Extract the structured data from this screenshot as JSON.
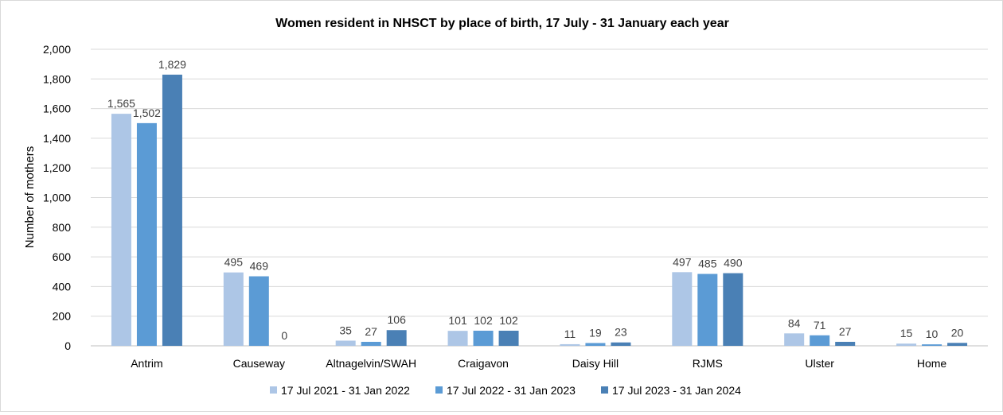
{
  "chart_data": {
    "type": "bar",
    "title": "Women resident in NHSCT by place of birth, 17 July - 31 January each year",
    "xlabel": "",
    "ylabel": "Number of mothers",
    "ylim": [
      0,
      2000
    ],
    "yticks": [
      "0",
      "200",
      "400",
      "600",
      "800",
      "1,000",
      "1,200",
      "1,400",
      "1,600",
      "1,800",
      "2,000"
    ],
    "grid": true,
    "legend_position": "bottom",
    "categories": [
      "Antrim",
      "Causeway",
      "Altnagelvin/SWAH",
      "Craigavon",
      "Daisy Hill",
      "RJMS",
      "Ulster",
      "Home"
    ],
    "series": [
      {
        "name": "17 Jul 2021 - 31 Jan 2022",
        "color": "#adc6e6",
        "values": [
          1565,
          495,
          35,
          101,
          11,
          497,
          84,
          15
        ],
        "labels": [
          "1,565",
          "495",
          "35",
          "101",
          "11",
          "497",
          "84",
          "15"
        ]
      },
      {
        "name": "17 Jul 2022 - 31 Jan 2023",
        "color": "#5b9bd5",
        "values": [
          1502,
          469,
          27,
          102,
          19,
          485,
          71,
          10
        ],
        "labels": [
          "1,502",
          "469",
          "27",
          "102",
          "19",
          "485",
          "71",
          "10"
        ]
      },
      {
        "name": "17 Jul 2023 - 31 Jan 2024",
        "color": "#4a80b5",
        "values": [
          1829,
          0,
          106,
          102,
          23,
          490,
          27,
          20
        ],
        "labels": [
          "1,829",
          "0",
          "106",
          "102",
          "23",
          "490",
          "27",
          "20"
        ]
      }
    ]
  }
}
